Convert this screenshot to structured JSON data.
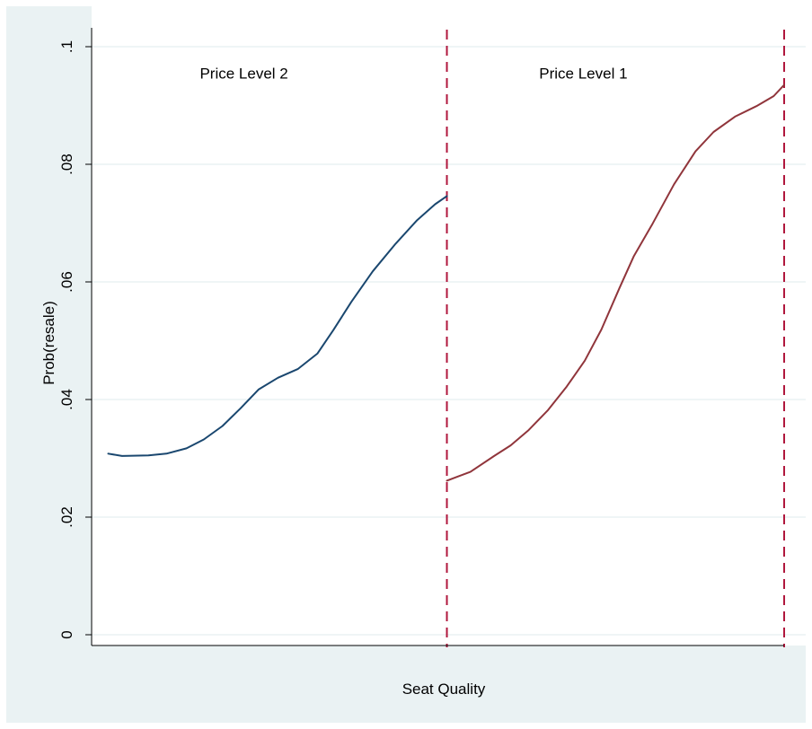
{
  "colors": {
    "outer_background": "#eaf2f3",
    "plot_background": "#ffffff",
    "gridline": "#eaf2f3",
    "series_price_level_2": "#1a476f",
    "series_price_level_1": "#90353b",
    "boundary_line": "#b0173d"
  },
  "chart_data": {
    "type": "line",
    "title": "",
    "xlabel": "Seat Quality",
    "ylabel": "Prob(resale)",
    "x_ticks_shown": false,
    "x_range": [
      0,
      100
    ],
    "ylim": [
      0,
      0.1
    ],
    "y_ticks": [
      {
        "value": 0,
        "label": "0"
      },
      {
        "value": 0.02,
        "label": ".02"
      },
      {
        "value": 0.04,
        "label": ".04"
      },
      {
        "value": 0.06,
        "label": ".06"
      },
      {
        "value": 0.08,
        "label": ".08"
      },
      {
        "value": 0.1,
        "label": ".1"
      }
    ],
    "grid": "horizontal",
    "boundaries": [
      {
        "x": 51.3
      },
      {
        "x": 100
      }
    ],
    "segment_labels": [
      {
        "text": "Price Level 2",
        "x": 22,
        "y": 0.0955
      },
      {
        "text": "Price Level 1",
        "x": 71,
        "y": 0.0955
      }
    ],
    "series": [
      {
        "color_key": "series_price_level_2",
        "points": [
          [
            2.4,
            0.0308
          ],
          [
            4.4,
            0.0304
          ],
          [
            8.2,
            0.0305
          ],
          [
            10.8,
            0.0308
          ],
          [
            13.7,
            0.0317
          ],
          [
            16.2,
            0.0332
          ],
          [
            18.9,
            0.0355
          ],
          [
            21.5,
            0.0385
          ],
          [
            24.1,
            0.0417
          ],
          [
            26.9,
            0.0437
          ],
          [
            29.8,
            0.0452
          ],
          [
            32.6,
            0.0478
          ],
          [
            34.9,
            0.0518
          ],
          [
            37.5,
            0.0566
          ],
          [
            40.6,
            0.0618
          ],
          [
            43.9,
            0.0665
          ],
          [
            47.0,
            0.0705
          ],
          [
            49.6,
            0.0732
          ],
          [
            51.3,
            0.0746
          ]
        ]
      },
      {
        "color_key": "series_price_level_1",
        "points": [
          [
            51.3,
            0.0262
          ],
          [
            54.7,
            0.0277
          ],
          [
            58.0,
            0.0303
          ],
          [
            60.5,
            0.0322
          ],
          [
            63.1,
            0.0348
          ],
          [
            65.9,
            0.0382
          ],
          [
            68.6,
            0.0422
          ],
          [
            71.2,
            0.0466
          ],
          [
            73.6,
            0.0519
          ],
          [
            76.2,
            0.0589
          ],
          [
            78.3,
            0.0644
          ],
          [
            81.0,
            0.0699
          ],
          [
            84.1,
            0.0766
          ],
          [
            87.2,
            0.0822
          ],
          [
            89.8,
            0.0855
          ],
          [
            92.9,
            0.0881
          ],
          [
            96.0,
            0.0899
          ],
          [
            98.5,
            0.0916
          ],
          [
            100.0,
            0.0935
          ]
        ]
      }
    ]
  }
}
